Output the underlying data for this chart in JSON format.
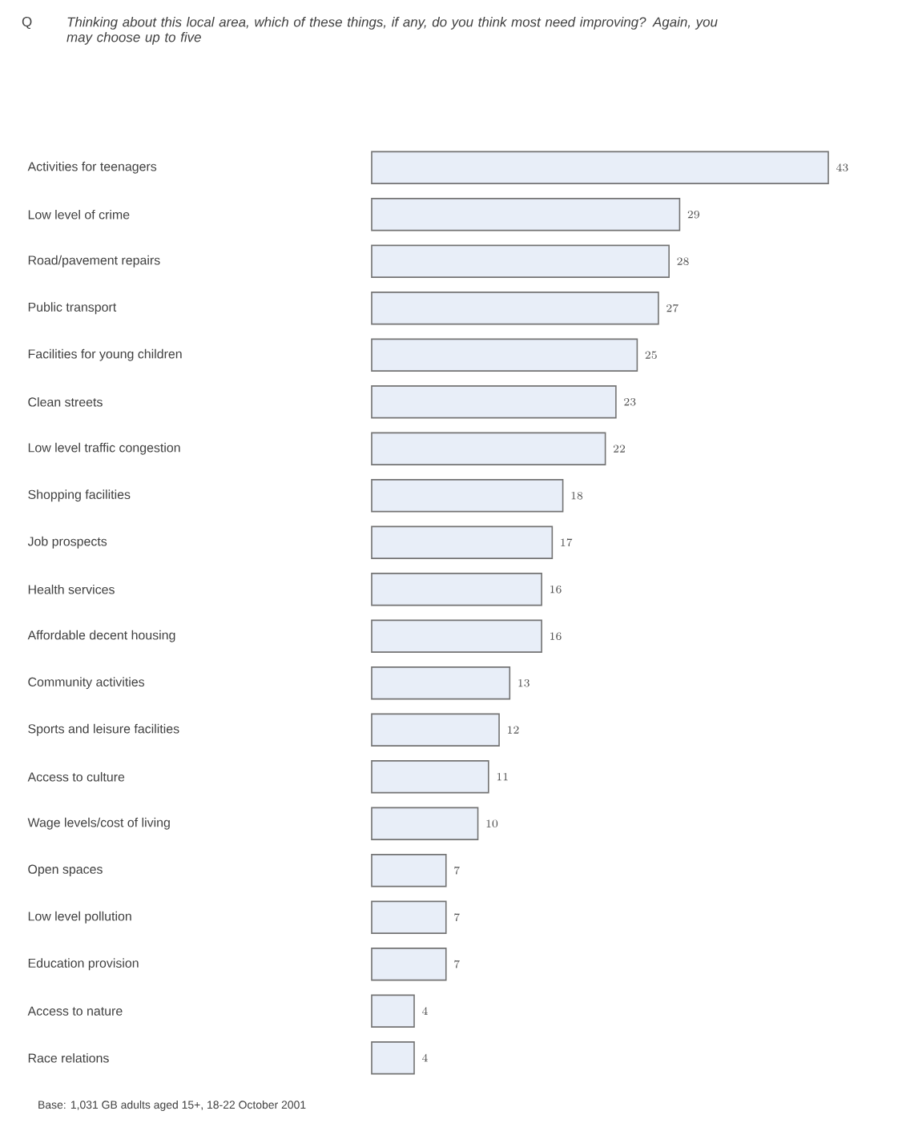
{
  "chart_data": {
    "type": "bar",
    "orientation": "horizontal",
    "title": "Thinking about this local area, which of these things, if any, do you think most need improving?  Again, you may choose up to five",
    "categories": [
      "Activities for teenagers",
      "Low level of crime",
      "Road/pavement repairs",
      "Public transport",
      "Facilities for young children",
      "Clean streets",
      "Low level traffic congestion",
      "Shopping facilities",
      "Job prospects",
      "Health services",
      "Affordable decent housing",
      "Community activities",
      "Sports and leisure facilities",
      "Access to culture",
      "Wage levels/cost of living",
      "Open spaces",
      "Low level pollution",
      "Education provision",
      "Access to nature",
      "Race relations"
    ],
    "values": [
      43,
      29,
      28,
      27,
      25,
      23,
      22,
      18,
      17,
      16,
      16,
      13,
      12,
      11,
      10,
      7,
      7,
      7,
      4,
      4
    ],
    "color": "#e8eef8",
    "data_labels": true,
    "annotations": [
      "Q",
      "Base: 1,031 GB adults aged 15+, 18-22 October 2001"
    ]
  }
}
